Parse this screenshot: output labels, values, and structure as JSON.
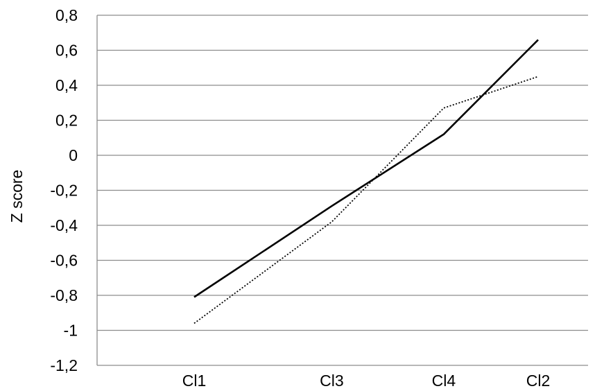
{
  "chart_data": {
    "type": "line",
    "title": "",
    "xlabel": "",
    "ylabel": "Z score",
    "categories": [
      "Cl1",
      "Cl3",
      "Cl4",
      "Cl2"
    ],
    "x_positions": [
      1,
      2.02,
      2.85,
      3.55
    ],
    "ylim": [
      -1.2,
      0.8
    ],
    "yticks": [
      -1.2,
      -1,
      -0.8,
      -0.6,
      -0.4,
      -0.2,
      0,
      0.2,
      0.4,
      0.6,
      0.8
    ],
    "ytick_labels": [
      "-1,2",
      "-1",
      "-0,8",
      "-0,6",
      "-0,4",
      "-0,2",
      "0",
      "0,2",
      "0,4",
      "0,6",
      "0,8"
    ],
    "grid": true,
    "legend": "none",
    "series": [
      {
        "style": "solid",
        "color": "#000000",
        "values": [
          -0.81,
          -0.29,
          0.12,
          0.66
        ]
      },
      {
        "style": "dotted",
        "color": "#000000",
        "values": [
          -0.96,
          -0.38,
          0.27,
          0.45
        ]
      }
    ]
  }
}
